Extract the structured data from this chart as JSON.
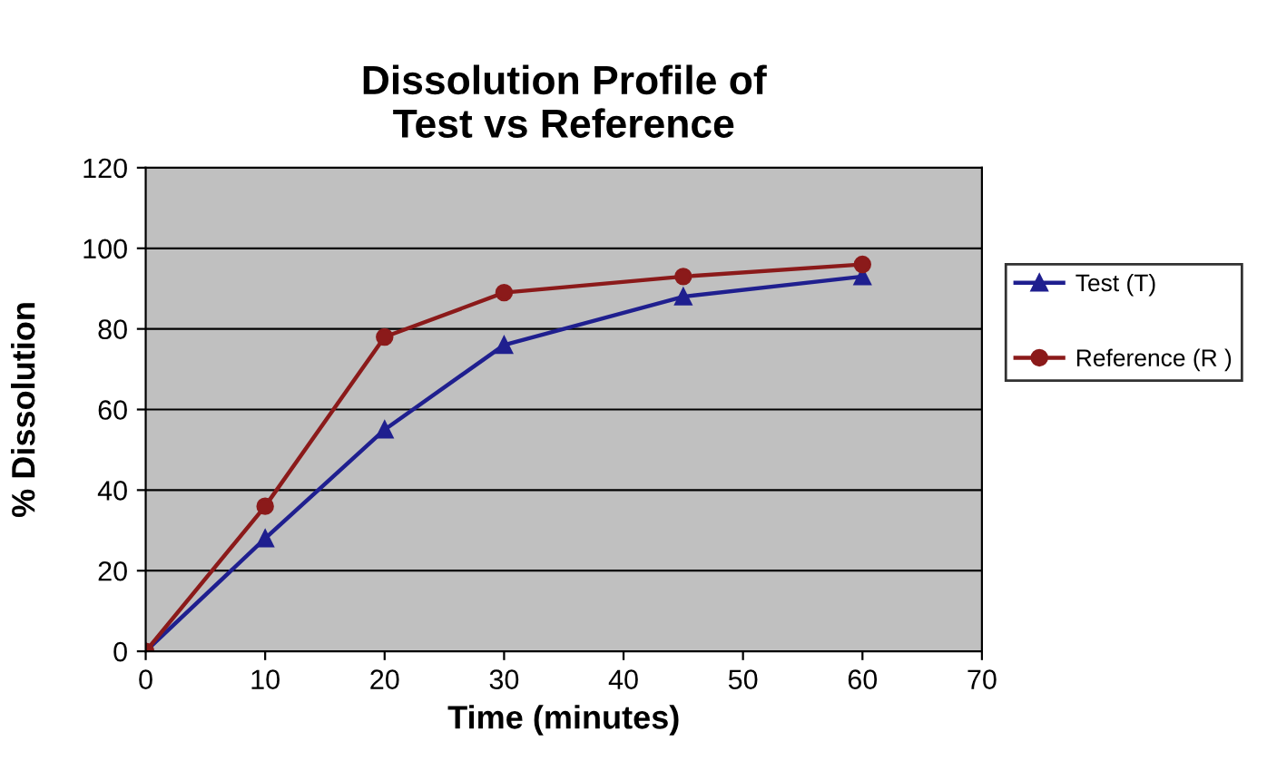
{
  "chart_data": {
    "type": "line",
    "title": "Dissolution Profile of\nTest vs Reference",
    "xlabel": "Time (minutes)",
    "ylabel": "% Dissolution",
    "x": [
      0,
      10,
      20,
      30,
      45,
      60
    ],
    "series": [
      {
        "name": "Test (T)",
        "color": "#1f1f8f",
        "values": [
          0,
          28,
          55,
          76,
          88,
          93
        ],
        "marker": "triangle"
      },
      {
        "name": "Reference (R )",
        "color": "#8b1a1a",
        "values": [
          0,
          36,
          78,
          89,
          93,
          96
        ],
        "marker": "circle"
      }
    ],
    "xlim": [
      0,
      70
    ],
    "xticks": [
      0,
      10,
      20,
      30,
      40,
      50,
      60,
      70
    ],
    "ylim": [
      0,
      120
    ],
    "yticks": [
      0,
      20,
      40,
      60,
      80,
      100,
      120
    ],
    "grid": "y",
    "legend": "right",
    "line_style": "solid"
  }
}
